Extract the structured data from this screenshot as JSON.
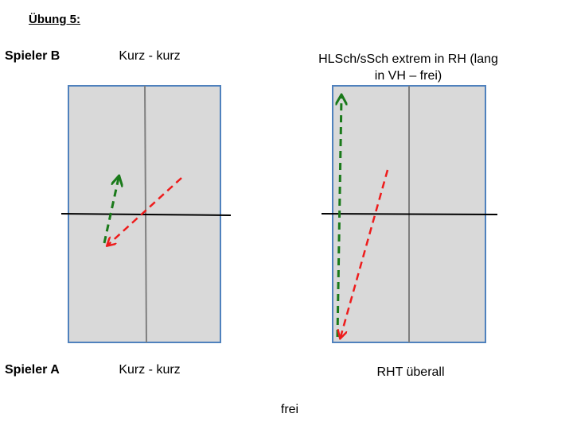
{
  "title": "Übung 5:",
  "players": {
    "top": "Spieler B",
    "bottom": "Spieler A"
  },
  "tables": [
    {
      "top_label": "Kurz - kurz",
      "bottom_label": "Kurz - kurz"
    },
    {
      "top_label": "HLSch/sSch extrem in RH (lang in VH – frei)",
      "bottom_label": "RHT überall"
    }
  ],
  "footer": "frei",
  "colors": {
    "table_fill": "#d9d9d9",
    "table_border": "#4f81bd",
    "center_line": "#7f7f7f",
    "net": "#000000",
    "arrow_green": "#1a7a1a",
    "arrow_red": "#ee1c1c"
  }
}
